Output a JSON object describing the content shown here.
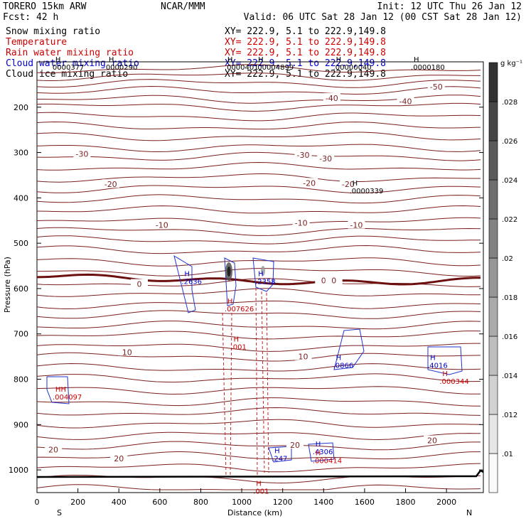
{
  "header": {
    "model": "TORERO  15km ARW",
    "source": "NCAR/MMM",
    "init": "Init: 12 UTC Thu 26 Jan 12",
    "fcst": "Fcst:   42 h",
    "valid": "Valid: 06 UTC Sat 28 Jan 12 (00 CST Sat 28 Jan 12)",
    "fields": [
      {
        "label": "Snow mixing ratio",
        "xy": "XY= 222.9,  5.1 to 222.9,149.8",
        "color": "#000000"
      },
      {
        "label": "Temperature",
        "xy": "XY= 222.9,  5.1 to 222.9,149.8",
        "color": "#cc0000"
      },
      {
        "label": "Rain water mixing ratio",
        "xy": "XY= 222.9,  5.1 to 222.9,149.8",
        "color": "#cc0000"
      },
      {
        "label": "Cloud water mixing ratio",
        "xy": "XY= 222.9,  5.1 to 222.9,149.8",
        "color": "#0000cc"
      },
      {
        "label": "Cloud ice mixing ratio",
        "xy": "XY= 222.9,  5.1 to 222.9,149.8",
        "color": "#000000"
      }
    ]
  },
  "chart_data": {
    "type": "cross-section contour",
    "xlabel": "Distance (km)",
    "ylabel": "Pressure (hPa)",
    "xlim": [
      0,
      2180
    ],
    "ylim": [
      1050,
      100
    ],
    "x_ticks": [
      "0",
      "200",
      "400",
      "600",
      "800",
      "1000",
      "1200",
      "1400",
      "1600",
      "1800",
      "2000"
    ],
    "y_ticks": [
      "200",
      "300",
      "400",
      "500",
      "600",
      "700",
      "800",
      "900",
      "1000"
    ],
    "x_end_labels": {
      "left": "S",
      "right": "N"
    },
    "colorbar": {
      "unit": "g kg⁻¹",
      "ticks": [
        ".01",
        ".012",
        ".014",
        ".016",
        ".018",
        ".02",
        ".022",
        ".024",
        ".026",
        ".028"
      ]
    },
    "temperature_contours": [
      {
        "label": "-50",
        "x": 1950,
        "p": 155
      },
      {
        "label": "-40",
        "x": 1440,
        "p": 180
      },
      {
        "label": "-40",
        "x": 1800,
        "p": 187
      },
      {
        "label": "-30",
        "x": 220,
        "p": 303
      },
      {
        "label": "-30",
        "x": 1300,
        "p": 305
      },
      {
        "label": "-30",
        "x": 1410,
        "p": 313
      },
      {
        "label": "-20",
        "x": 360,
        "p": 370
      },
      {
        "label": "-20",
        "x": 1330,
        "p": 367
      },
      {
        "label": "-20",
        "x": 1520,
        "p": 370
      },
      {
        "label": "-10",
        "x": 610,
        "p": 460
      },
      {
        "label": "-10",
        "x": 1290,
        "p": 455
      },
      {
        "label": "-10",
        "x": 1560,
        "p": 460
      },
      {
        "label": "0",
        "x": 500,
        "p": 590
      },
      {
        "label": "0",
        "x": 1400,
        "p": 582
      },
      {
        "label": "0",
        "x": 1450,
        "p": 582
      },
      {
        "label": "10",
        "x": 440,
        "p": 740
      },
      {
        "label": "10",
        "x": 1300,
        "p": 750
      },
      {
        "label": "20",
        "x": 80,
        "p": 955
      },
      {
        "label": "20",
        "x": 400,
        "p": 975
      },
      {
        "label": "20",
        "x": 1260,
        "p": 945
      },
      {
        "label": "20",
        "x": 1930,
        "p": 935
      }
    ],
    "extrema_markers": [
      {
        "mark": "H",
        "value": "0000377",
        "x": 90,
        "p": 117,
        "color": "#000000"
      },
      {
        "mark": "H",
        "value": "0000290",
        "x": 350,
        "p": 117,
        "color": "#000000"
      },
      {
        "mark": "H",
        "value": ".0000401",
        "x": 930,
        "p": 117,
        "color": "#000000"
      },
      {
        "mark": "H",
        "value": ".00004899",
        "x": 1080,
        "p": 117,
        "color": "#000000"
      },
      {
        "mark": "H",
        "value": ".00000040",
        "x": 1460,
        "p": 117,
        "color": "#000000"
      },
      {
        "mark": "H",
        "value": ".0000180",
        "x": 1840,
        "p": 117,
        "color": "#000000"
      },
      {
        "mark": "H",
        "value": ".0000339",
        "x": 1540,
        "p": 390,
        "color": "#000000"
      },
      {
        "mark": "H",
        "value": ".2636",
        "x": 720,
        "p": 590,
        "color": "#0000cc"
      },
      {
        "mark": "H",
        "value": ".2358",
        "x": 1080,
        "p": 590,
        "color": "#0000cc"
      },
      {
        "mark": "H",
        "value": ".007626",
        "x": 930,
        "p": 650,
        "color": "#cc0000"
      },
      {
        "mark": "H",
        "value": ".001",
        "x": 960,
        "p": 734,
        "color": "#cc0000"
      },
      {
        "mark": "H",
        "value": ".0866",
        "x": 1460,
        "p": 775,
        "color": "#0000cc"
      },
      {
        "mark": "H",
        "value": ".4016",
        "x": 1920,
        "p": 775,
        "color": "#0000cc"
      },
      {
        "mark": "H",
        "value": ".000344",
        "x": 1980,
        "p": 810,
        "color": "#cc0000"
      },
      {
        "mark": "HH",
        "value": ".004097",
        "x": 90,
        "p": 845,
        "color": "#cc0000"
      },
      {
        "mark": "H",
        "value": ".247",
        "x": 1160,
        "p": 980,
        "color": "#0000cc"
      },
      {
        "mark": "H",
        "value": ".4306",
        "x": 1360,
        "p": 965,
        "color": "#0000cc"
      },
      {
        "mark": "H",
        "value": ".000414",
        "x": 1360,
        "p": 985,
        "color": "#cc0000"
      },
      {
        "mark": "H",
        "value": ".001",
        "x": 1070,
        "p": 1052,
        "color": "#cc0000"
      }
    ]
  }
}
